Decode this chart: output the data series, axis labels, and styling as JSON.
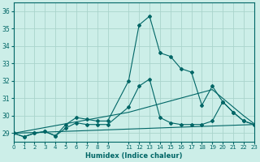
{
  "xlabel": "Humidex (Indice chaleur)",
  "bg_color": "#cceee8",
  "line_color": "#006666",
  "grid_color": "#aad4cc",
  "xlim": [
    0,
    23
  ],
  "ylim": [
    28.5,
    36.5
  ],
  "yticks": [
    29,
    30,
    31,
    32,
    33,
    34,
    35,
    36
  ],
  "xtick_positions": [
    0,
    1,
    2,
    3,
    4,
    5,
    6,
    7,
    8,
    9,
    11,
    12,
    13,
    14,
    15,
    16,
    17,
    18,
    19,
    20,
    21,
    22,
    23
  ],
  "xtick_labels": [
    "0",
    "1",
    "2",
    "3",
    "4",
    "5",
    "6",
    "7",
    "8",
    "9",
    "11",
    "12",
    "13",
    "14",
    "15",
    "16",
    "17",
    "18",
    "19",
    "20",
    "21",
    "22",
    "23"
  ],
  "lines": [
    {
      "x": [
        0,
        1,
        2,
        3,
        4,
        5,
        6,
        7,
        8,
        9,
        11,
        12,
        13,
        14,
        15,
        16,
        17,
        18,
        19,
        20,
        21,
        22,
        23
      ],
      "y": [
        29.0,
        28.8,
        29.0,
        29.1,
        28.85,
        29.5,
        29.9,
        29.8,
        29.7,
        29.7,
        32.0,
        35.2,
        35.7,
        33.6,
        33.4,
        32.7,
        32.5,
        30.6,
        31.7,
        30.8,
        30.2,
        29.7,
        29.5
      ],
      "marker": true
    },
    {
      "x": [
        0,
        1,
        2,
        3,
        4,
        5,
        6,
        7,
        8,
        9,
        11,
        12,
        13,
        14,
        15,
        16,
        17,
        18,
        19,
        20,
        21,
        22,
        23
      ],
      "y": [
        29.0,
        28.8,
        29.0,
        29.1,
        28.85,
        29.3,
        29.6,
        29.5,
        29.5,
        29.5,
        30.5,
        31.7,
        32.1,
        29.9,
        29.6,
        29.5,
        29.5,
        29.5,
        29.7,
        30.8,
        30.2,
        29.7,
        29.5
      ],
      "marker": true
    },
    {
      "x": [
        0,
        23
      ],
      "y": [
        29.0,
        29.5
      ],
      "marker": false
    },
    {
      "x": [
        0,
        11,
        19,
        22,
        23
      ],
      "y": [
        29.0,
        30.2,
        31.5,
        30.0,
        29.55
      ],
      "marker": false
    }
  ]
}
